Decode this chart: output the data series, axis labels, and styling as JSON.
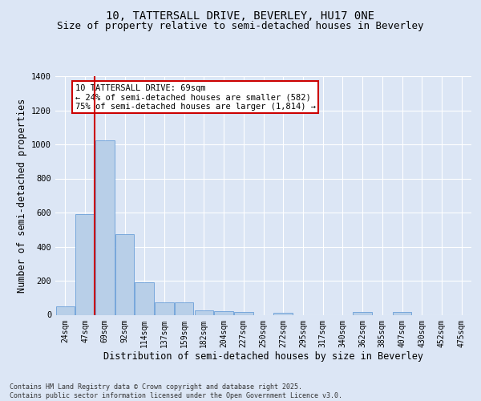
{
  "title": "10, TATTERSALL DRIVE, BEVERLEY, HU17 0NE",
  "subtitle": "Size of property relative to semi-detached houses in Beverley",
  "xlabel": "Distribution of semi-detached houses by size in Beverley",
  "ylabel": "Number of semi-detached properties",
  "categories": [
    "24sqm",
    "47sqm",
    "69sqm",
    "92sqm",
    "114sqm",
    "137sqm",
    "159sqm",
    "182sqm",
    "204sqm",
    "227sqm",
    "250sqm",
    "272sqm",
    "295sqm",
    "317sqm",
    "340sqm",
    "362sqm",
    "385sqm",
    "407sqm",
    "430sqm",
    "452sqm",
    "475sqm"
  ],
  "values": [
    50,
    590,
    1025,
    475,
    190,
    75,
    75,
    25,
    20,
    15,
    0,
    10,
    0,
    0,
    0,
    15,
    0,
    15,
    0,
    0,
    0
  ],
  "bar_color": "#b8cfe8",
  "bar_edge_color": "#6a9fd8",
  "highlight_index": 2,
  "highlight_line_color": "#cc0000",
  "annotation_text": "10 TATTERSALL DRIVE: 69sqm\n← 24% of semi-detached houses are smaller (582)\n75% of semi-detached houses are larger (1,814) →",
  "annotation_box_color": "#cc0000",
  "ylim": [
    0,
    1400
  ],
  "yticks": [
    0,
    200,
    400,
    600,
    800,
    1000,
    1200,
    1400
  ],
  "background_color": "#dce6f5",
  "grid_color": "#ffffff",
  "footer_text": "Contains HM Land Registry data © Crown copyright and database right 2025.\nContains public sector information licensed under the Open Government Licence v3.0.",
  "title_fontsize": 10,
  "subtitle_fontsize": 9,
  "tick_fontsize": 7,
  "label_fontsize": 8.5
}
